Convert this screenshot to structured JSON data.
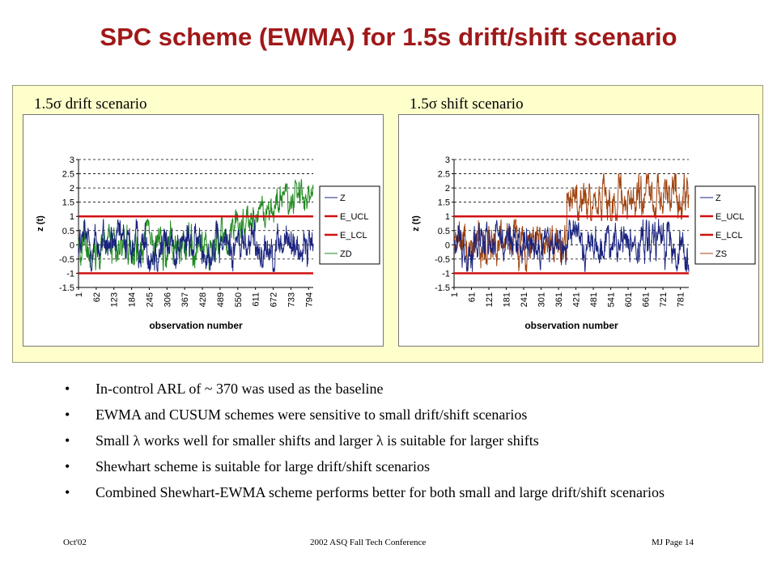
{
  "slide": {
    "title": "SPC scheme (EWMA) for 1.5s drift/shift scenario",
    "colors": {
      "title": "#a01818",
      "panel": "#ffffcc",
      "ucl_lcl": "#d01010",
      "z": "#1a237e",
      "zd": "#1e8a1e",
      "zs": "#a0420e"
    }
  },
  "charts": [
    {
      "label_prefix": "1.5",
      "label_symbol": "σ",
      "label_suffix": " drift scenario"
    },
    {
      "label_prefix": "1.5",
      "label_symbol": "σ",
      "label_suffix": " shift scenario"
    }
  ],
  "chart_data": [
    {
      "type": "line",
      "title": "",
      "xlabel": "observation number",
      "ylabel": "z (t)",
      "ylim": [
        -1.5,
        3
      ],
      "yticks": [
        3,
        2.5,
        2,
        1.5,
        1,
        0.5,
        0,
        -0.5,
        -1,
        -1.5
      ],
      "ytick_labels": [
        "3",
        "2.5",
        "2",
        "1.5",
        "1",
        "0.5",
        "0",
        "-0.5",
        "-1",
        "-1.5"
      ],
      "xticks": [
        "1",
        "62",
        "123",
        "184",
        "245",
        "306",
        "367",
        "428",
        "489",
        "550",
        "611",
        "672",
        "733",
        "794"
      ],
      "x_range": [
        1,
        810
      ],
      "grid": "horizontal dashed",
      "legend_position": "right",
      "series": [
        {
          "name": "Z",
          "description": "EWMA of in-control data, fluctuating about 0 between about -0.9 and 0.9"
        },
        {
          "name": "E_UCL",
          "constant": 1
        },
        {
          "name": "E_LCL",
          "constant": -1
        },
        {
          "name": "ZD",
          "description": "EWMA under drift, follows Z until about obs 490 then rises roughly linearly to about 2.3 by obs 810"
        }
      ]
    },
    {
      "type": "line",
      "title": "",
      "xlabel": "observation number",
      "ylabel": "z (t)",
      "ylim": [
        -1.5,
        3
      ],
      "yticks": [
        3,
        2.5,
        2,
        1.5,
        1,
        0.5,
        0,
        -0.5,
        -1,
        -1.5
      ],
      "ytick_labels": [
        "3",
        "2.5",
        "2",
        "1.5",
        "1",
        "0.5",
        "0",
        "-0.5",
        "-1",
        "-1.5"
      ],
      "xticks": [
        "1",
        "61",
        "121",
        "181",
        "241",
        "301",
        "361",
        "421",
        "481",
        "541",
        "601",
        "661",
        "721",
        "781"
      ],
      "x_range": [
        1,
        810
      ],
      "grid": "horizontal dashed",
      "legend_position": "right",
      "series": [
        {
          "name": "Z",
          "description": "EWMA of in-control data, fluctuating about 0 between about -0.9 and 0.9"
        },
        {
          "name": "E_UCL",
          "constant": 1
        },
        {
          "name": "E_LCL",
          "constant": -1
        },
        {
          "name": "ZS",
          "description": "EWMA under shift, follows Z until about obs 390 then jumps to fluctuate about 1.6 between about 0.8 and 2.5"
        }
      ]
    }
  ],
  "bullets": [
    {
      "text": "In-control ARL of ~ 370 was used as the baseline"
    },
    {
      "text": "EWMA and CUSUM schemes were sensitive to small drift/shift scenarios"
    },
    {
      "pre": "Small ",
      "sym1": "λ",
      "mid": " works well for smaller shifts and larger ",
      "sym2": "λ",
      "post": " is suitable for larger shifts"
    },
    {
      "text": "Shewhart scheme is suitable for large drift/shift scenarios"
    },
    {
      "text": "Combined Shewhart-EWMA scheme performs better for both small and large drift/shift scenarios"
    }
  ],
  "footer": {
    "left": "Oct'02",
    "center": "2002 ASQ Fall Tech Conference",
    "right": "MJ    Page 14"
  }
}
